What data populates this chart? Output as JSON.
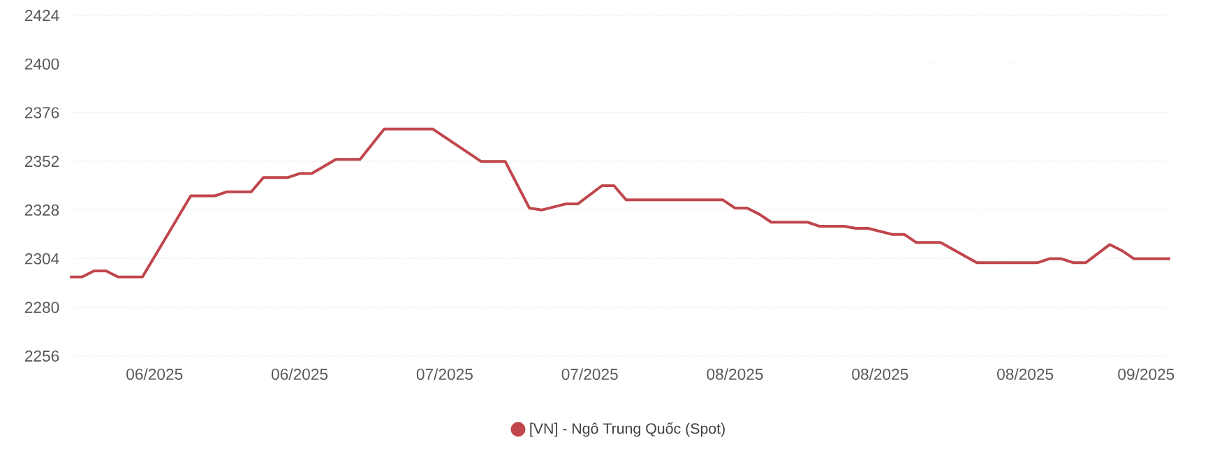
{
  "chart_data": {
    "type": "line",
    "series": [
      {
        "name": "[VN] - Ngô Trung Quốc (Spot)",
        "color": "#c0464d",
        "x": [
          "2025-06-08",
          "2025-06-09",
          "2025-06-10",
          "2025-06-11",
          "2025-06-12",
          "2025-06-14",
          "2025-06-18",
          "2025-06-20",
          "2025-06-21",
          "2025-06-23",
          "2025-06-24",
          "2025-06-26",
          "2025-06-27",
          "2025-06-28",
          "2025-06-30",
          "2025-07-02",
          "2025-07-04",
          "2025-07-08",
          "2025-07-10",
          "2025-07-12",
          "2025-07-14",
          "2025-07-16",
          "2025-07-17",
          "2025-07-19",
          "2025-07-20",
          "2025-07-22",
          "2025-07-23",
          "2025-07-24",
          "2025-08-01",
          "2025-08-02",
          "2025-08-03",
          "2025-08-04",
          "2025-08-05",
          "2025-08-08",
          "2025-08-09",
          "2025-08-11",
          "2025-08-12",
          "2025-08-13",
          "2025-08-15",
          "2025-08-16",
          "2025-08-17",
          "2025-08-19",
          "2025-08-22",
          "2025-08-27",
          "2025-08-28",
          "2025-08-29",
          "2025-08-30",
          "2025-08-31",
          "2025-09-02",
          "2025-09-03",
          "2025-09-04",
          "2025-09-07"
        ],
        "values": [
          2295,
          2295,
          2298,
          2298,
          2295,
          2295,
          2335,
          2335,
          2337,
          2337,
          2344,
          2344,
          2346,
          2346,
          2353,
          2353,
          2368,
          2368,
          2360,
          2352,
          2352,
          2329,
          2328,
          2331,
          2331,
          2340,
          2340,
          2333,
          2333,
          2329,
          2329,
          2326,
          2322,
          2322,
          2320,
          2320,
          2319,
          2319,
          2316,
          2316,
          2312,
          2312,
          2302,
          2302,
          2304,
          2304,
          2302,
          2302,
          2311,
          2308,
          2304,
          2304
        ]
      }
    ],
    "xlim": [
      "2025-06-08",
      "2025-09-07"
    ],
    "xticks": [
      {
        "value": "2025-06-15",
        "label": "06/2025"
      },
      {
        "value": "2025-06-27",
        "label": "06/2025"
      },
      {
        "value": "2025-07-09",
        "label": "07/2025"
      },
      {
        "value": "2025-07-21",
        "label": "07/2025"
      },
      {
        "value": "2025-08-02",
        "label": "08/2025"
      },
      {
        "value": "2025-08-14",
        "label": "08/2025"
      },
      {
        "value": "2025-08-26",
        "label": "08/2025"
      },
      {
        "value": "2025-09-05",
        "label": "09/2025"
      }
    ],
    "ylim": [
      2256,
      2424
    ],
    "yticks": [
      2256,
      2280,
      2304,
      2328,
      2352,
      2376,
      2400,
      2424
    ],
    "grid": "y",
    "legend": "bottom"
  }
}
